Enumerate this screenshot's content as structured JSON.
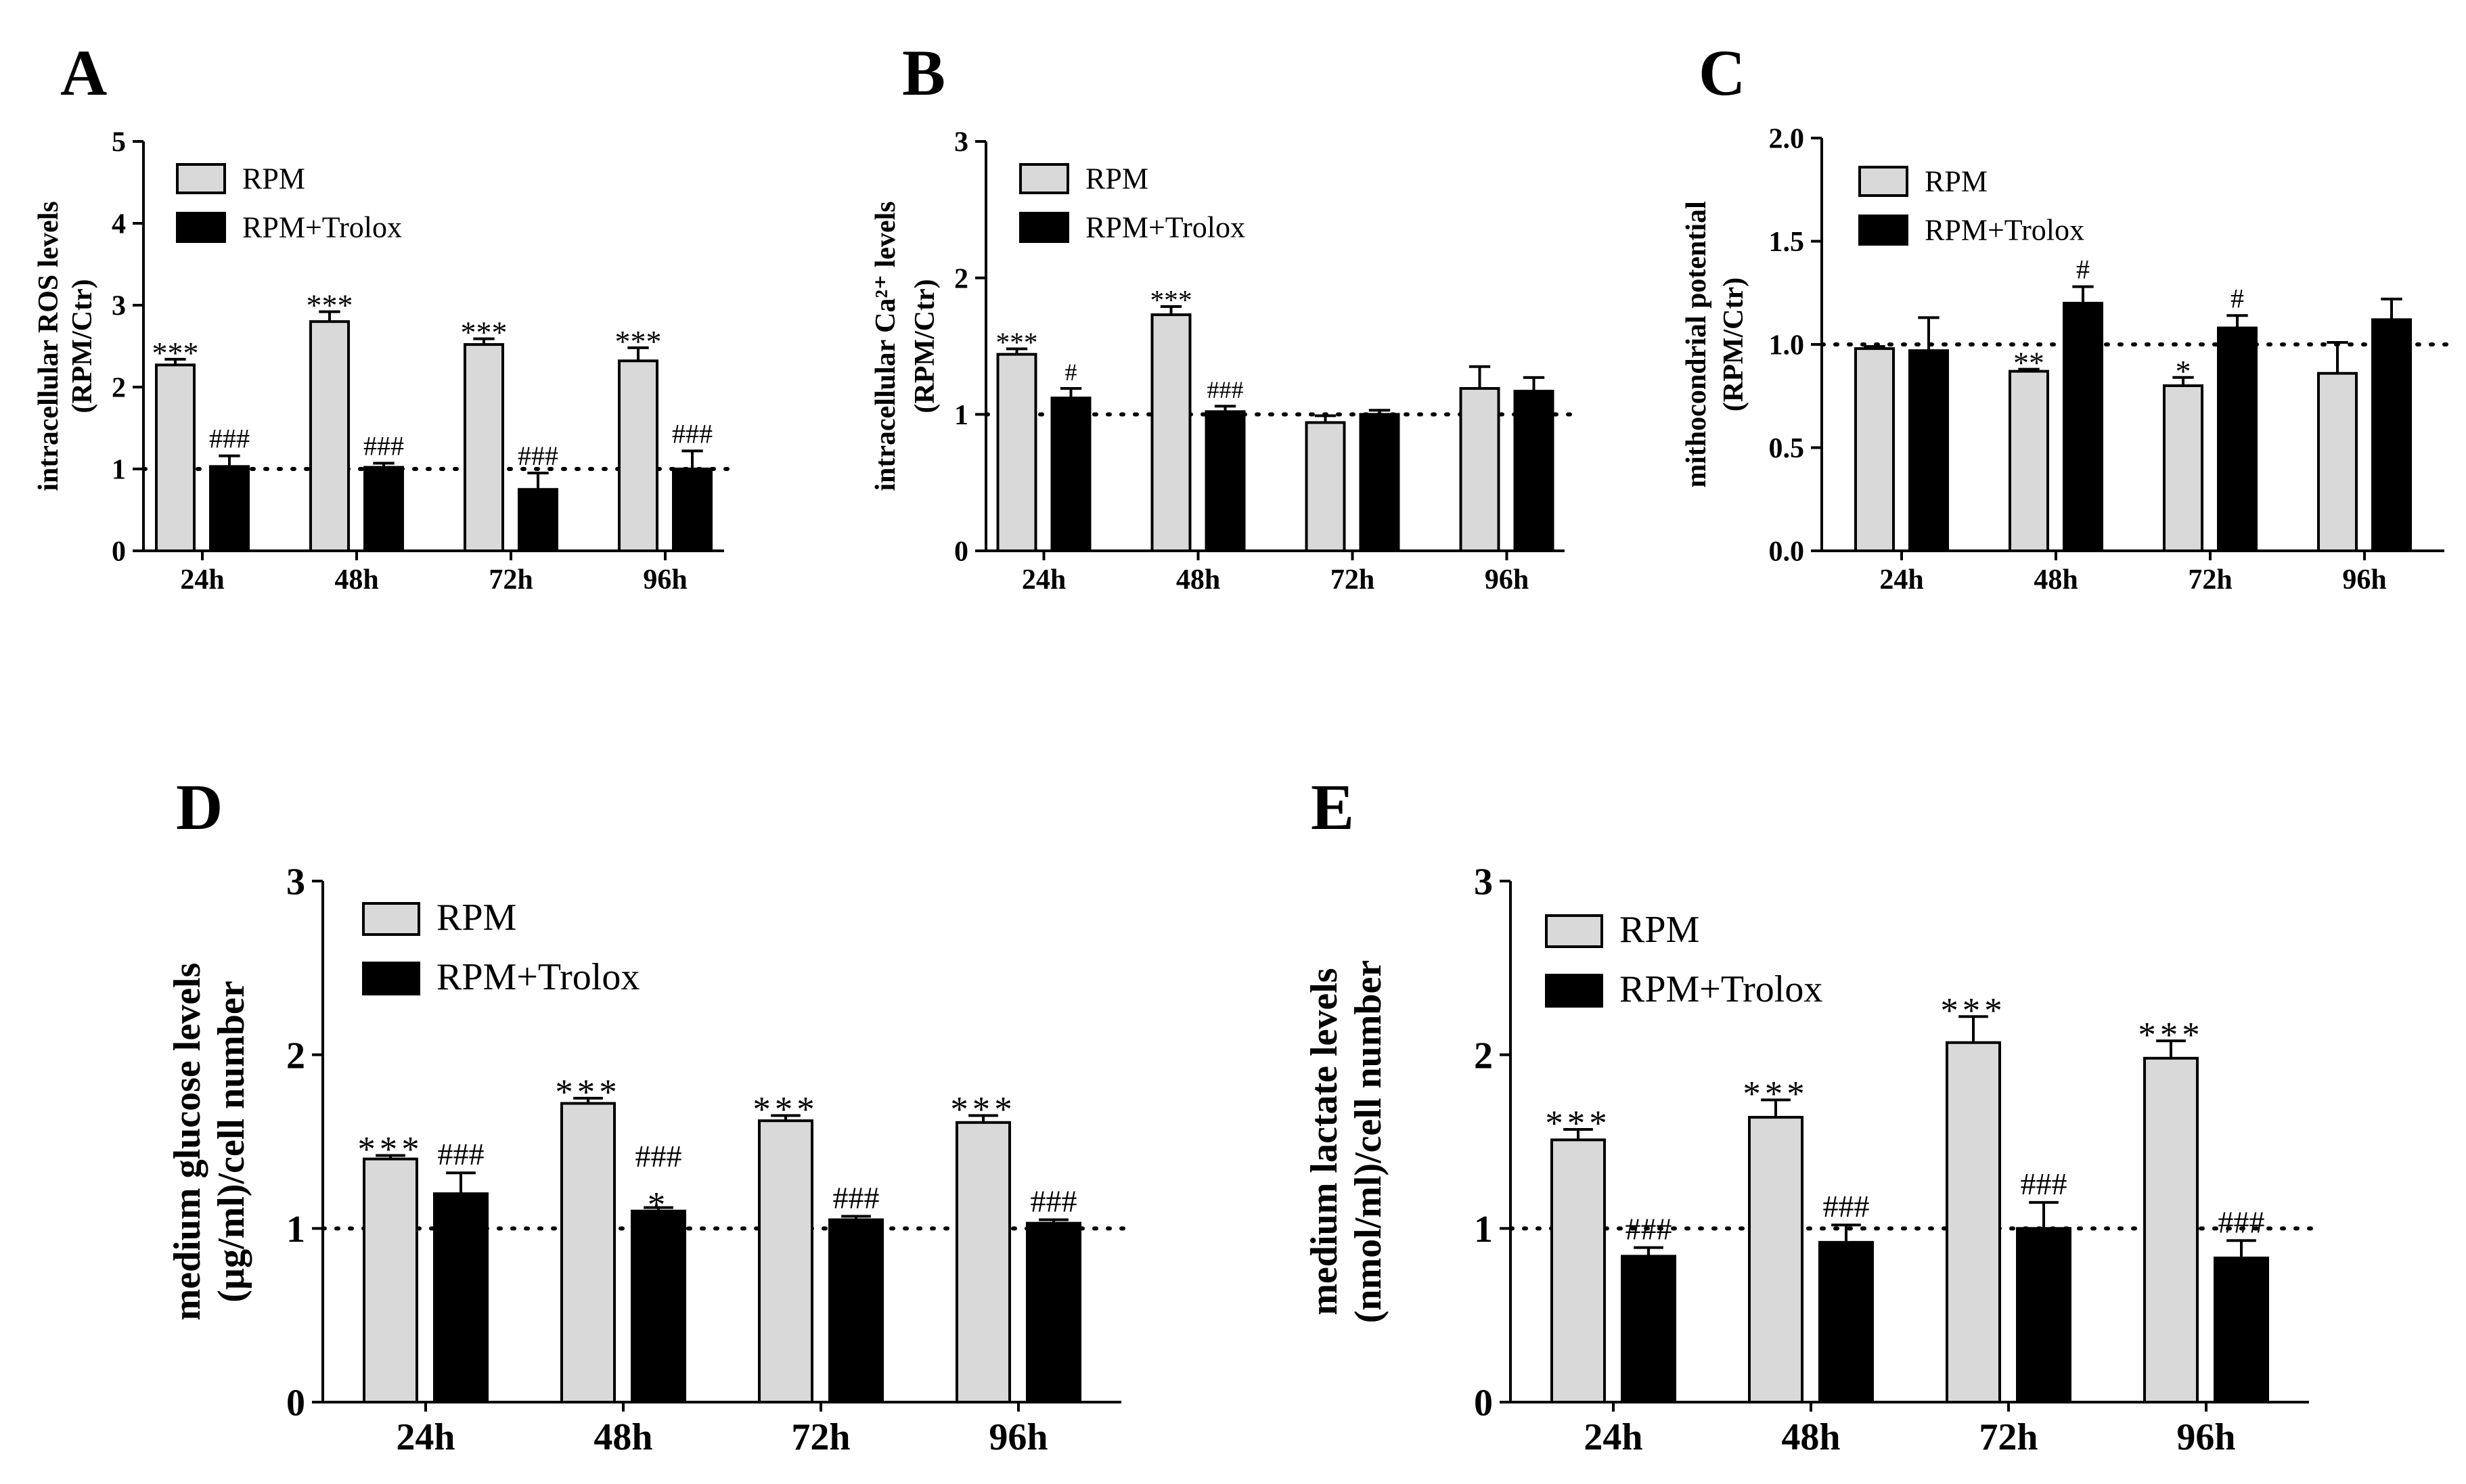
{
  "legend": {
    "rpm": "RPM",
    "trolox": "RPM+Trolox"
  },
  "colors": {
    "rpm": "#d9d9d9",
    "trolox": "#000000",
    "axis": "#000000"
  },
  "chart_data": [
    {
      "panel": "A",
      "type": "bar",
      "ylabel_lines": [
        "intracellular ROS levels",
        "(RPM/Ctr)"
      ],
      "categories": [
        "24h",
        "48h",
        "72h",
        "96h"
      ],
      "ylim": [
        0,
        5
      ],
      "yticks": [
        0,
        1,
        2,
        3,
        4,
        5
      ],
      "ytick_labels": [
        "0",
        "1",
        "2",
        "3",
        "4",
        "5"
      ],
      "reference_line": 1,
      "legend_position": "top-left",
      "series": [
        {
          "name": "RPM",
          "values": [
            2.27,
            2.8,
            2.52,
            2.32
          ],
          "errors": [
            0.07,
            0.12,
            0.07,
            0.16
          ],
          "annotations": [
            "***",
            "***",
            "***",
            "***"
          ]
        },
        {
          "name": "RPM+Trolox",
          "values": [
            1.03,
            1.02,
            0.75,
            1.0
          ],
          "errors": [
            0.13,
            0.05,
            0.2,
            0.22
          ],
          "annotations": [
            "###",
            "###",
            "###",
            "###"
          ]
        }
      ]
    },
    {
      "panel": "B",
      "type": "bar",
      "ylabel_lines": [
        "intracellular Ca²⁺ levels",
        "(RPM/Ctr)"
      ],
      "categories": [
        "24h",
        "48h",
        "72h",
        "96h"
      ],
      "ylim": [
        0,
        3
      ],
      "yticks": [
        0,
        1,
        2,
        3
      ],
      "ytick_labels": [
        "0",
        "1",
        "2",
        "3"
      ],
      "reference_line": 1,
      "legend_position": "top-left",
      "series": [
        {
          "name": "RPM",
          "values": [
            1.44,
            1.73,
            0.94,
            1.19
          ],
          "errors": [
            0.04,
            0.06,
            0.05,
            0.16
          ],
          "annotations": [
            "***",
            "***",
            "",
            ""
          ]
        },
        {
          "name": "RPM+Trolox",
          "values": [
            1.12,
            1.02,
            1.0,
            1.17
          ],
          "errors": [
            0.07,
            0.04,
            0.03,
            0.1
          ],
          "annotations": [
            "#",
            "###",
            "",
            ""
          ]
        }
      ]
    },
    {
      "panel": "C",
      "type": "bar",
      "ylabel_lines": [
        "mithocondrial potential",
        "(RPM/Ctr)"
      ],
      "categories": [
        "24h",
        "48h",
        "72h",
        "96h"
      ],
      "ylim": [
        0,
        2
      ],
      "yticks": [
        0,
        0.5,
        1,
        1.5,
        2
      ],
      "ytick_labels": [
        "0.0",
        "0.5",
        "1.0",
        "1.5",
        "2.0"
      ],
      "reference_line": 1,
      "legend_position": "top-left",
      "series": [
        {
          "name": "RPM",
          "values": [
            0.98,
            0.87,
            0.8,
            0.86
          ],
          "errors": [
            0.01,
            0.01,
            0.04,
            0.15
          ],
          "annotations": [
            "",
            "**",
            "*",
            ""
          ]
        },
        {
          "name": "RPM+Trolox",
          "values": [
            0.97,
            1.2,
            1.08,
            1.12
          ],
          "errors": [
            0.16,
            0.08,
            0.06,
            0.1
          ],
          "annotations": [
            "",
            "#",
            "#",
            ""
          ]
        }
      ]
    },
    {
      "panel": "D",
      "type": "bar",
      "ylabel_lines": [
        "medium glucose levels",
        "(µg/ml)/cell number"
      ],
      "categories": [
        "24h",
        "48h",
        "72h",
        "96h"
      ],
      "ylim": [
        0,
        3
      ],
      "yticks": [
        0,
        1,
        2,
        3
      ],
      "ytick_labels": [
        "0",
        "1",
        "2",
        "3"
      ],
      "reference_line": 1,
      "legend_position": "top-left",
      "series": [
        {
          "name": "RPM",
          "values": [
            1.4,
            1.72,
            1.62,
            1.61
          ],
          "errors": [
            0.02,
            0.03,
            0.03,
            0.04
          ],
          "annotations": [
            "***",
            "***",
            "***",
            "***"
          ]
        },
        {
          "name": "RPM+Trolox",
          "values": [
            1.2,
            1.1,
            1.05,
            1.03
          ],
          "errors": [
            0.12,
            0.02,
            0.02,
            0.02
          ],
          "annotations": [
            "###",
            "###\n*",
            "###",
            "###"
          ]
        }
      ]
    },
    {
      "panel": "E",
      "type": "bar",
      "ylabel_lines": [
        "medium lactate levels",
        "(nmol/ml)/cell number"
      ],
      "categories": [
        "24h",
        "48h",
        "72h",
        "96h"
      ],
      "ylim": [
        0,
        3
      ],
      "yticks": [
        0,
        1,
        2,
        3
      ],
      "ytick_labels": [
        "0",
        "1",
        "2",
        "3"
      ],
      "reference_line": 1,
      "legend_position": "top-left",
      "series": [
        {
          "name": "RPM",
          "values": [
            1.51,
            1.64,
            2.07,
            1.98
          ],
          "errors": [
            0.06,
            0.1,
            0.15,
            0.1
          ],
          "annotations": [
            "***",
            "***",
            "***",
            "***"
          ]
        },
        {
          "name": "RPM+Trolox",
          "values": [
            0.84,
            0.92,
            1.0,
            0.83
          ],
          "errors": [
            0.05,
            0.1,
            0.15,
            0.1
          ],
          "annotations": [
            "###",
            "###",
            "###",
            "###"
          ]
        }
      ]
    }
  ]
}
